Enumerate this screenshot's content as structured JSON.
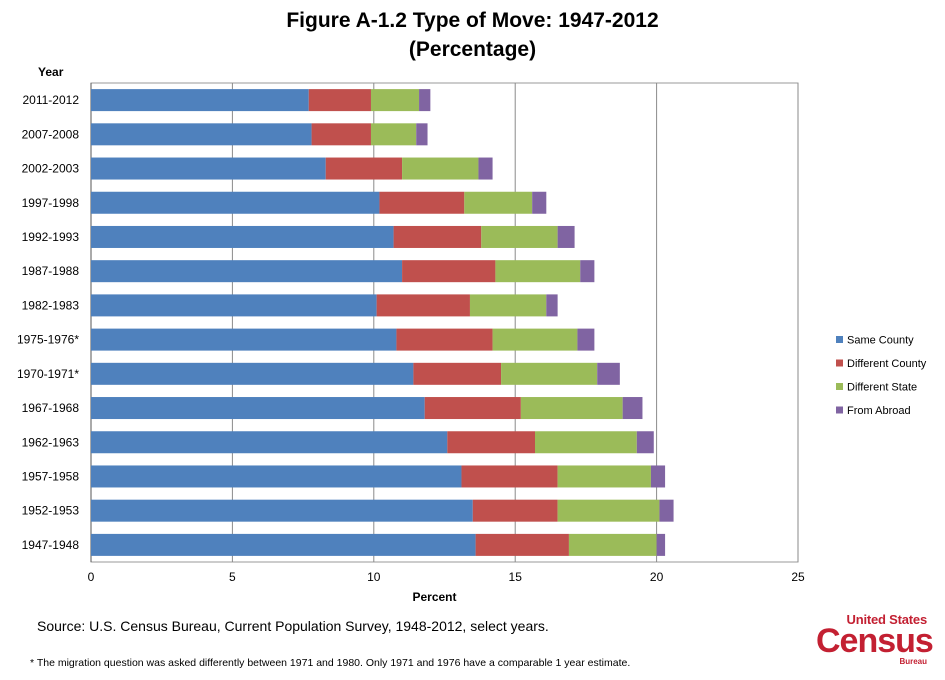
{
  "title": {
    "line1": "Figure A-1.2 Type of Move: 1947-2012",
    "line2": "(Percentage)"
  },
  "source": "Source: U.S. Census Bureau, Current Population Survey, 1948-2012, select years.",
  "footnote": "* The migration question was asked differently between 1971 and 1980. Only 1971 and 1976 have a comparable 1 year estimate.",
  "logo": {
    "top": "United States",
    "mid": "Census",
    "bottom": "Bureau"
  },
  "chart_data": {
    "type": "bar",
    "orientation": "horizontal",
    "stacked": true,
    "title": "Figure A-1.2 Type of Move: 1947-2012 (Percentage)",
    "xlabel": "Percent",
    "ylabel": "Year",
    "xlim": [
      0,
      25
    ],
    "xticks": [
      0,
      5,
      10,
      15,
      20,
      25
    ],
    "grid": "vertical",
    "legend_position": "right",
    "categories": [
      "2011-2012",
      "2007-2008",
      "2002-2003",
      "1997-1998",
      "1992-1993",
      "1987-1988",
      "1982-1983",
      "1975-1976*",
      "1970-1971*",
      "1967-1968",
      "1962-1963",
      "1957-1958",
      "1952-1953",
      "1947-1948"
    ],
    "series": [
      {
        "name": "Same County",
        "color": "#4f81bd",
        "values": [
          7.7,
          7.8,
          8.3,
          10.2,
          10.7,
          11.0,
          10.1,
          10.8,
          11.4,
          11.8,
          12.6,
          13.1,
          13.5,
          13.6
        ]
      },
      {
        "name": "Different County",
        "color": "#c0504d",
        "values": [
          2.2,
          2.1,
          2.7,
          3.0,
          3.1,
          3.3,
          3.3,
          3.4,
          3.1,
          3.4,
          3.1,
          3.4,
          3.0,
          3.3
        ]
      },
      {
        "name": "Different State",
        "color": "#9bbb59",
        "values": [
          1.7,
          1.6,
          2.7,
          2.4,
          2.7,
          3.0,
          2.7,
          3.0,
          3.4,
          3.6,
          3.6,
          3.3,
          3.6,
          3.1
        ]
      },
      {
        "name": "From Abroad",
        "color": "#8064a2",
        "values": [
          0.4,
          0.4,
          0.5,
          0.5,
          0.6,
          0.5,
          0.4,
          0.6,
          0.8,
          0.7,
          0.6,
          0.5,
          0.5,
          0.3
        ]
      }
    ]
  }
}
